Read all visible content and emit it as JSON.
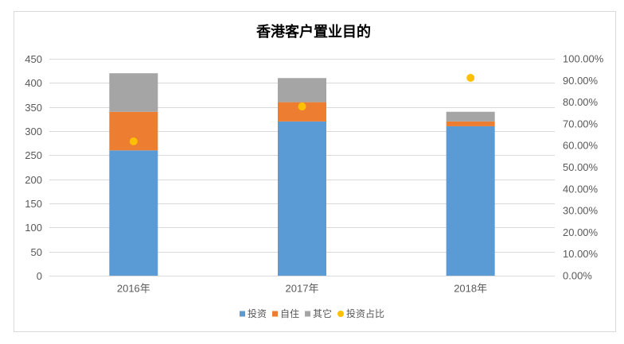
{
  "chart_data": {
    "type": "bar",
    "stacked": true,
    "title": "香港客户置业目的",
    "categories": [
      "2016年",
      "2017年",
      "2018年"
    ],
    "series": [
      {
        "name": "投资",
        "type": "bar",
        "axis": "primary",
        "color": "#5B9BD5",
        "values": [
          260,
          320,
          310
        ]
      },
      {
        "name": "自住",
        "type": "bar",
        "axis": "primary",
        "color": "#ED7D31",
        "values": [
          80,
          40,
          10
        ]
      },
      {
        "name": "其它",
        "type": "bar",
        "axis": "primary",
        "color": "#A5A5A5",
        "values": [
          80,
          50,
          20
        ]
      },
      {
        "name": "投资占比",
        "type": "scatter",
        "axis": "secondary",
        "color": "#FFC000",
        "values": [
          61.9,
          78.0,
          91.2
        ]
      }
    ],
    "ylim": [
      0,
      450
    ],
    "yticks": [
      "0",
      "50",
      "100",
      "150",
      "200",
      "250",
      "300",
      "350",
      "400",
      "450"
    ],
    "y2lim": [
      0,
      100
    ],
    "y2ticks": [
      "0.00%",
      "10.00%",
      "20.00%",
      "30.00%",
      "40.00%",
      "50.00%",
      "60.00%",
      "70.00%",
      "80.00%",
      "90.00%",
      "100.00%"
    ],
    "grid": true,
    "legend": "bottom"
  }
}
